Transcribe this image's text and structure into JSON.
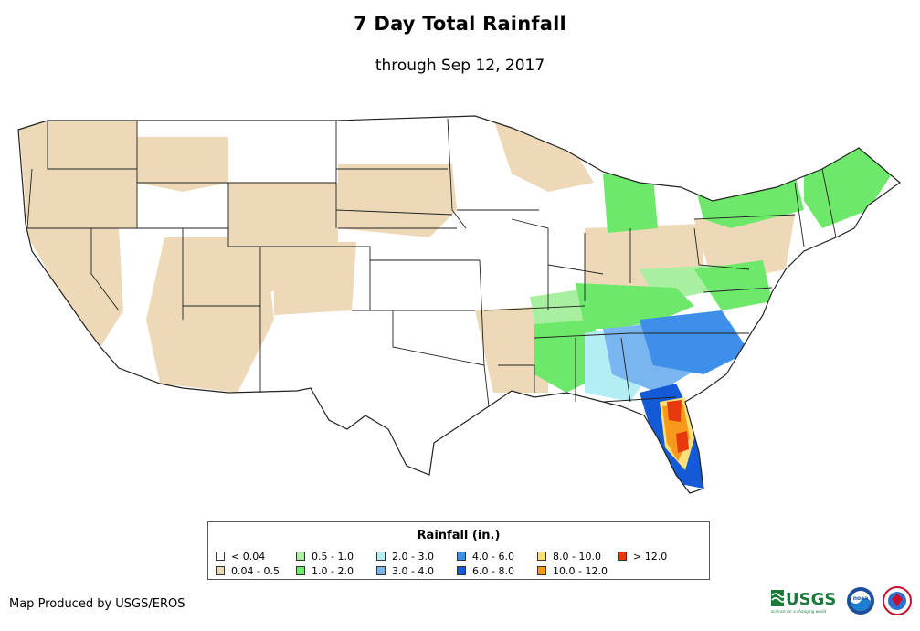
{
  "title": "7 Day Total Rainfall",
  "subtitle": "through Sep 12, 2017",
  "legend": {
    "title": "Rainfall (in.)",
    "items": [
      {
        "label": "< 0.04",
        "color": "#ffffff"
      },
      {
        "label": "0.04 - 0.5",
        "color": "#edd9b8"
      },
      {
        "label": "0.5 - 1.0",
        "color": "#a8efa0"
      },
      {
        "label": "1.0 - 2.0",
        "color": "#6ee86a"
      },
      {
        "label": "2.0 - 3.0",
        "color": "#b4eef5"
      },
      {
        "label": "3.0 - 4.0",
        "color": "#79b5ee"
      },
      {
        "label": "4.0 - 6.0",
        "color": "#3d8fea"
      },
      {
        "label": "6.0 - 8.0",
        "color": "#1459d6"
      },
      {
        "label": "8.0 - 10.0",
        "color": "#fbe07a"
      },
      {
        "label": "10.0 - 12.0",
        "color": "#f79a1b"
      },
      {
        "label": "> 12.0",
        "color": "#e8380e"
      }
    ]
  },
  "credit": "Map Produced by USGS/EROS",
  "logos": {
    "usgs_text": "USGS",
    "usgs_tagline": "science for a changing world",
    "noaa_text": "noaa"
  }
}
